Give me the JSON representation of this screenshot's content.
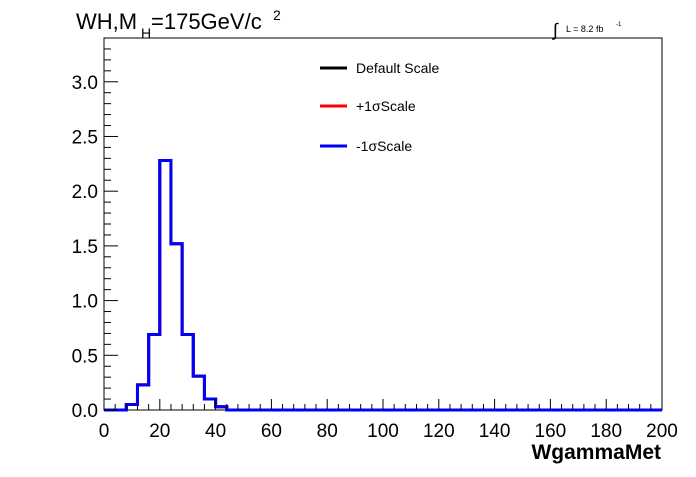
{
  "title": {
    "main": "WH,M",
    "subscript": "H",
    "rest": "=175GeV/c",
    "superscript": "2"
  },
  "luminosity": {
    "integral_symbol": "∫",
    "text": "L = 8.2 fb",
    "superscript": "-1"
  },
  "chart_data": {
    "type": "histogram",
    "xlabel": "WgammaMet",
    "ylabel": "",
    "xlim": [
      0,
      200
    ],
    "ylim": [
      0,
      3.4
    ],
    "x_ticks": [
      0,
      20,
      40,
      60,
      80,
      100,
      120,
      140,
      160,
      180,
      200
    ],
    "x_tick_labels": [
      "0",
      "20",
      "40",
      "60",
      "80",
      "100",
      "120",
      "140",
      "160",
      "180",
      "200"
    ],
    "y_ticks": [
      0,
      0.5,
      1.0,
      1.5,
      2.0,
      2.5,
      3.0
    ],
    "y_tick_labels": [
      "0.0",
      "0.5",
      "1.0",
      "1.5",
      "2.0",
      "2.5",
      "3.0"
    ],
    "grid": false,
    "legend_position": "top-center",
    "bin_edges": [
      0,
      4,
      8,
      12,
      16,
      20,
      24,
      28,
      32,
      36,
      40,
      44,
      48,
      52,
      56,
      60,
      64,
      68,
      72,
      76,
      80,
      84,
      88,
      92,
      96,
      100,
      104,
      108,
      112,
      116,
      120,
      124,
      128,
      132,
      136,
      140,
      144,
      148,
      152,
      156,
      160,
      164,
      168,
      172,
      176,
      180,
      184,
      188,
      192,
      196,
      200
    ],
    "series": [
      {
        "name": "Default Scale",
        "color": "#000000",
        "values": [
          0,
          0,
          0.05,
          0.23,
          0.69,
          2.28,
          1.52,
          0.69,
          0.31,
          0.1,
          0.03,
          0,
          0,
          0,
          0,
          0,
          0,
          0,
          0,
          0,
          0,
          0,
          0,
          0,
          0,
          0,
          0,
          0,
          0,
          0,
          0,
          0,
          0,
          0,
          0,
          0,
          0,
          0,
          0,
          0,
          0,
          0,
          0,
          0,
          0,
          0,
          0,
          0,
          0,
          0
        ]
      },
      {
        "name": "+1σScale",
        "color": "#ff0000",
        "values": [
          0,
          0,
          0.05,
          0.23,
          0.69,
          2.28,
          1.52,
          0.69,
          0.31,
          0.1,
          0.03,
          0,
          0,
          0,
          0,
          0,
          0,
          0,
          0,
          0,
          0,
          0,
          0,
          0,
          0,
          0,
          0,
          0,
          0,
          0,
          0,
          0,
          0,
          0,
          0,
          0,
          0,
          0,
          0,
          0,
          0,
          0,
          0,
          0,
          0,
          0,
          0,
          0,
          0,
          0
        ]
      },
      {
        "name": "-1σScale",
        "color": "#0000ff",
        "values": [
          0,
          0,
          0.05,
          0.23,
          0.69,
          2.28,
          1.52,
          0.69,
          0.31,
          0.1,
          0.03,
          0,
          0,
          0,
          0,
          0,
          0,
          0,
          0,
          0,
          0,
          0,
          0,
          0,
          0,
          0,
          0,
          0,
          0,
          0,
          0,
          0,
          0,
          0,
          0,
          0,
          0,
          0,
          0,
          0,
          0,
          0,
          0,
          0,
          0,
          0,
          0,
          0,
          0,
          0
        ]
      }
    ]
  }
}
